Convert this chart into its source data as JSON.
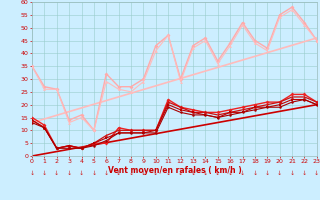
{
  "xlabel": "Vent moyen/en rafales ( km/h )",
  "xlim": [
    0,
    23
  ],
  "ylim": [
    0,
    60
  ],
  "yticks": [
    0,
    5,
    10,
    15,
    20,
    25,
    30,
    35,
    40,
    45,
    50,
    55,
    60
  ],
  "xticks": [
    0,
    1,
    2,
    3,
    4,
    5,
    6,
    7,
    8,
    9,
    10,
    11,
    12,
    13,
    14,
    15,
    16,
    17,
    18,
    19,
    20,
    21,
    22,
    23
  ],
  "bg_color": "#cceeff",
  "grid_color": "#99cccc",
  "series": [
    {
      "comment": "light pink upper line 1 - rafales max",
      "x": [
        0,
        1,
        2,
        3,
        4,
        5,
        6,
        7,
        8,
        9,
        10,
        11,
        12,
        13,
        14,
        15,
        16,
        17,
        18,
        19,
        20,
        21,
        22,
        23
      ],
      "y": [
        35,
        27,
        26,
        14,
        16,
        10,
        32,
        27,
        27,
        30,
        43,
        47,
        30,
        43,
        46,
        37,
        44,
        52,
        45,
        42,
        55,
        58,
        52,
        45
      ],
      "color": "#ffaaaa",
      "marker": "D",
      "ms": 2.0,
      "lw": 1.0
    },
    {
      "comment": "light pink upper line 2 - rafales",
      "x": [
        0,
        1,
        2,
        3,
        4,
        5,
        6,
        7,
        8,
        9,
        10,
        11,
        12,
        13,
        14,
        15,
        16,
        17,
        18,
        19,
        20,
        21,
        22,
        23
      ],
      "y": [
        35,
        26,
        26,
        13,
        15,
        10,
        29,
        26,
        25,
        29,
        41,
        47,
        29,
        42,
        45,
        36,
        43,
        51,
        44,
        41,
        54,
        57,
        51,
        45
      ],
      "color": "#ffbbbb",
      "marker": "^",
      "ms": 2.0,
      "lw": 0.8
    },
    {
      "comment": "light pink diagonal line - linear trend rafales",
      "x": [
        0,
        23
      ],
      "y": [
        13,
        46
      ],
      "color": "#ffbbbb",
      "marker": null,
      "ms": 0,
      "lw": 1.2
    },
    {
      "comment": "dark red diagonal line - linear trend moyen",
      "x": [
        0,
        23
      ],
      "y": [
        0,
        20
      ],
      "color": "#cc0000",
      "marker": null,
      "ms": 0,
      "lw": 1.2
    },
    {
      "comment": "dark red line 1 - vent moyen max",
      "x": [
        0,
        1,
        2,
        3,
        4,
        5,
        6,
        7,
        8,
        9,
        10,
        11,
        12,
        13,
        14,
        15,
        16,
        17,
        18,
        19,
        20,
        21,
        22,
        23
      ],
      "y": [
        15,
        12,
        3,
        4,
        3,
        5,
        5,
        11,
        10,
        10,
        10,
        22,
        19,
        18,
        17,
        17,
        18,
        19,
        20,
        21,
        21,
        24,
        24,
        21
      ],
      "color": "#ee2222",
      "marker": "D",
      "ms": 2.0,
      "lw": 1.0
    },
    {
      "comment": "dark red line 2",
      "x": [
        0,
        1,
        2,
        3,
        4,
        5,
        6,
        7,
        8,
        9,
        10,
        11,
        12,
        13,
        14,
        15,
        16,
        17,
        18,
        19,
        20,
        21,
        22,
        23
      ],
      "y": [
        14,
        11,
        3,
        4,
        3,
        5,
        8,
        10,
        10,
        10,
        10,
        21,
        19,
        17,
        17,
        16,
        17,
        18,
        19,
        20,
        21,
        23,
        23,
        21
      ],
      "color": "#cc1111",
      "marker": "^",
      "ms": 2.0,
      "lw": 0.9
    },
    {
      "comment": "dark red line 3",
      "x": [
        0,
        1,
        2,
        3,
        4,
        5,
        6,
        7,
        8,
        9,
        10,
        11,
        12,
        13,
        14,
        15,
        16,
        17,
        18,
        19,
        20,
        21,
        22,
        23
      ],
      "y": [
        14,
        11,
        3,
        4,
        3,
        5,
        7,
        9,
        9,
        9,
        10,
        20,
        18,
        17,
        16,
        15,
        17,
        17,
        19,
        19,
        20,
        22,
        22,
        20
      ],
      "color": "#bb0000",
      "marker": "s",
      "ms": 1.8,
      "lw": 0.8
    },
    {
      "comment": "dark red line 4 - vent moyen min",
      "x": [
        0,
        1,
        2,
        3,
        4,
        5,
        6,
        7,
        8,
        9,
        10,
        11,
        12,
        13,
        14,
        15,
        16,
        17,
        18,
        19,
        20,
        21,
        22,
        23
      ],
      "y": [
        13,
        11,
        3,
        3,
        3,
        4,
        6,
        9,
        9,
        9,
        9,
        19,
        17,
        16,
        16,
        15,
        16,
        17,
        18,
        19,
        19,
        21,
        22,
        20
      ],
      "color": "#aa0000",
      "marker": "o",
      "ms": 1.8,
      "lw": 0.8
    }
  ],
  "arrow_symbol": "↓",
  "arrow_color": "#cc2222",
  "arrow_fontsize": 4.5
}
